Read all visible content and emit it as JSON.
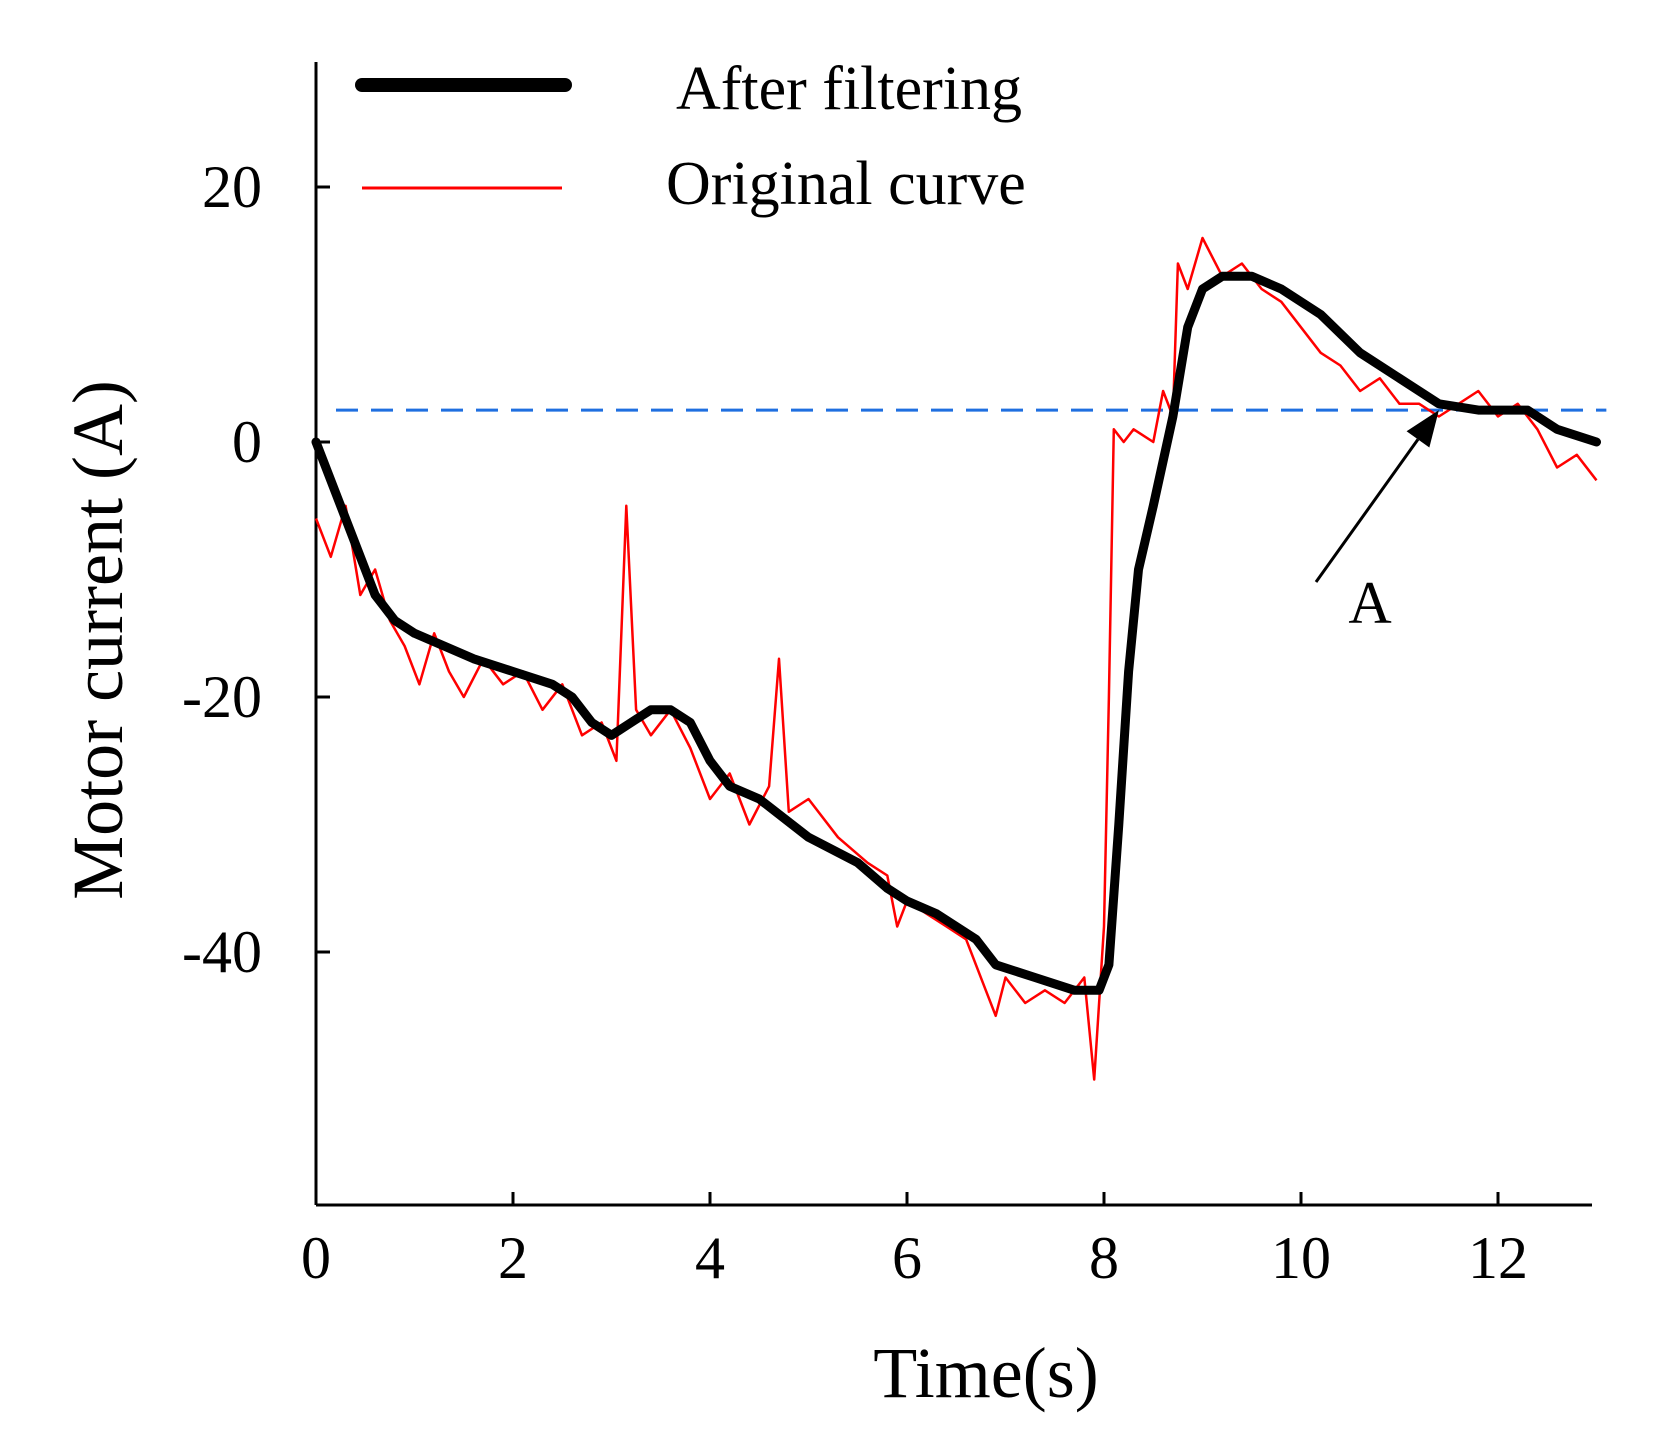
{
  "chart_data": {
    "type": "line",
    "title": "",
    "xlabel": "Time(s)",
    "ylabel": "Motor current (A)",
    "xlim": [
      0,
      13
    ],
    "ylim": [
      -60,
      30
    ],
    "x_ticks": [
      0,
      2,
      4,
      6,
      8,
      10,
      12
    ],
    "x_tick_labels": [
      "0",
      "2",
      "4",
      "6",
      "8",
      "10",
      "12"
    ],
    "y_ticks": [
      20,
      0,
      -20,
      -40
    ],
    "y_tick_labels": [
      "20",
      "0",
      "-20",
      "-40"
    ],
    "legend": {
      "placement": "top",
      "entries": [
        "After filtering",
        "Original curve"
      ]
    },
    "reference_line": {
      "y": 2.5,
      "style": "dashed",
      "color": "#1f6fe0"
    },
    "annotation": {
      "label": "A",
      "points_to": {
        "x": 11.4,
        "y": 2.5
      }
    },
    "series": [
      {
        "name": "After filtering",
        "color": "#000000",
        "style": "thick",
        "x": [
          0,
          0.2,
          0.4,
          0.6,
          0.8,
          1.0,
          1.3,
          1.6,
          2.0,
          2.4,
          2.6,
          2.8,
          3.0,
          3.2,
          3.4,
          3.6,
          3.8,
          4.0,
          4.2,
          4.5,
          5.0,
          5.5,
          5.8,
          6.0,
          6.3,
          6.7,
          6.9,
          7.3,
          7.7,
          7.95,
          8.05,
          8.15,
          8.25,
          8.35,
          8.5,
          8.7,
          8.85,
          9.0,
          9.2,
          9.5,
          9.8,
          10.2,
          10.6,
          11.0,
          11.4,
          11.8,
          12.3,
          12.6,
          13.0
        ],
        "values": [
          0,
          -4,
          -8,
          -12,
          -14,
          -15,
          -16,
          -17,
          -18,
          -19,
          -20,
          -22,
          -23,
          -22,
          -21,
          -21,
          -22,
          -25,
          -27,
          -28,
          -31,
          -33,
          -35,
          -36,
          -37,
          -39,
          -41,
          -42,
          -43,
          -43,
          -41,
          -30,
          -18,
          -10,
          -5,
          2,
          9,
          12,
          13,
          13,
          12,
          10,
          7,
          5,
          3,
          2.5,
          2.5,
          1,
          0
        ]
      },
      {
        "name": "Original curve",
        "color": "#ff0000",
        "style": "thin-noisy",
        "x": [
          0,
          0.15,
          0.3,
          0.45,
          0.6,
          0.75,
          0.9,
          1.05,
          1.2,
          1.35,
          1.5,
          1.7,
          1.9,
          2.1,
          2.3,
          2.5,
          2.7,
          2.9,
          3.05,
          3.15,
          3.25,
          3.4,
          3.6,
          3.8,
          4.0,
          4.2,
          4.4,
          4.6,
          4.7,
          4.8,
          5.0,
          5.3,
          5.6,
          5.8,
          5.9,
          6.0,
          6.2,
          6.4,
          6.6,
          6.8,
          6.9,
          7.0,
          7.2,
          7.4,
          7.6,
          7.8,
          7.9,
          8.0,
          8.05,
          8.1,
          8.2,
          8.3,
          8.5,
          8.6,
          8.7,
          8.75,
          8.85,
          9.0,
          9.2,
          9.4,
          9.6,
          9.8,
          10.0,
          10.2,
          10.4,
          10.6,
          10.8,
          11.0,
          11.2,
          11.4,
          11.6,
          11.8,
          12.0,
          12.2,
          12.4,
          12.6,
          12.8,
          13.0
        ],
        "values": [
          -6,
          -9,
          -5,
          -12,
          -10,
          -14,
          -16,
          -19,
          -15,
          -18,
          -20,
          -17,
          -19,
          -18,
          -21,
          -19,
          -23,
          -22,
          -25,
          -5,
          -21,
          -23,
          -21,
          -24,
          -28,
          -26,
          -30,
          -27,
          -17,
          -29,
          -28,
          -31,
          -33,
          -34,
          -38,
          -36,
          -37,
          -38,
          -39,
          -43,
          -45,
          -42,
          -44,
          -43,
          -44,
          -42,
          -50,
          -38,
          -20,
          1,
          0,
          1,
          0,
          4,
          2,
          14,
          12,
          16,
          13,
          14,
          12,
          11,
          9,
          7,
          6,
          4,
          5,
          3,
          3,
          2,
          3,
          4,
          2,
          3,
          1,
          -2,
          -1,
          -3
        ]
      }
    ]
  }
}
